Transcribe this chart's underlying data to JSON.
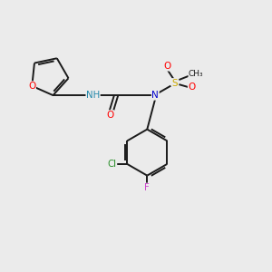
{
  "bg_color": "#ebebeb",
  "bond_color": "#1a1a1a",
  "atom_colors": {
    "O": "#ff0000",
    "N": "#0000cc",
    "NH": "#2288aa",
    "S": "#ccaa00",
    "Cl": "#228B22",
    "F": "#cc44cc",
    "C": "#1a1a1a"
  },
  "figsize": [
    3.0,
    3.0
  ],
  "dpi": 100,
  "lw": 1.4,
  "fs": 7.0
}
